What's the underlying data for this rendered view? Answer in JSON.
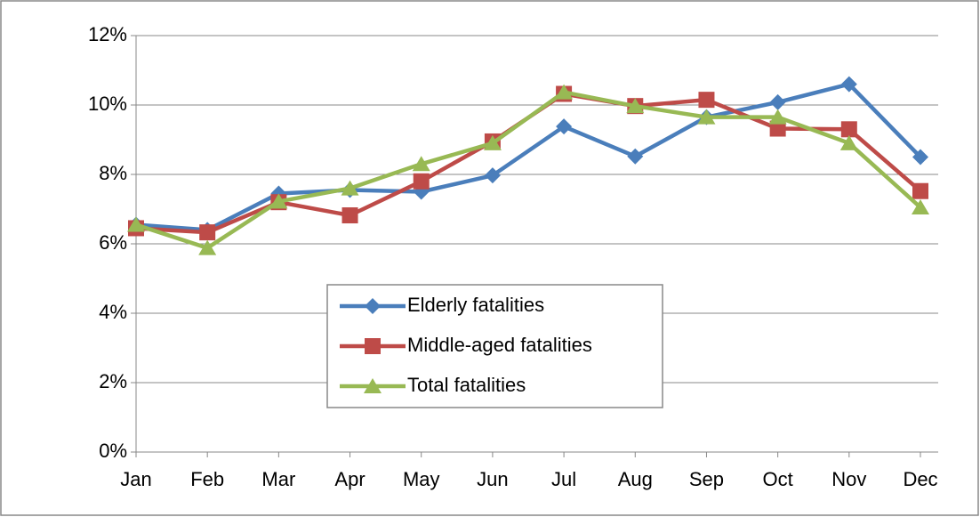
{
  "chart_data": {
    "type": "line",
    "categories": [
      "Jan",
      "Feb",
      "Mar",
      "Apr",
      "May",
      "Jun",
      "Jul",
      "Aug",
      "Sep",
      "Oct",
      "Nov",
      "Dec"
    ],
    "series": [
      {
        "name": "Elderly fatalities",
        "color": "#4a7ebb",
        "marker": "diamond",
        "values": [
          6.55,
          6.4,
          7.45,
          7.55,
          7.5,
          7.97,
          9.38,
          8.52,
          9.65,
          10.08,
          10.6,
          8.5
        ]
      },
      {
        "name": "Middle-aged fatalities",
        "color": "#be4b48",
        "marker": "square",
        "values": [
          6.45,
          6.33,
          7.2,
          6.82,
          7.8,
          8.95,
          10.32,
          9.97,
          10.15,
          9.32,
          9.3,
          7.52
        ]
      },
      {
        "name": "Total fatalities",
        "color": "#98b954",
        "marker": "triangle",
        "values": [
          6.55,
          5.88,
          7.22,
          7.6,
          8.3,
          8.9,
          10.37,
          9.97,
          9.65,
          9.65,
          8.9,
          7.05
        ]
      }
    ],
    "ylim": [
      0,
      12
    ],
    "yticks": [
      {
        "value": 0,
        "label": "0%"
      },
      {
        "value": 2,
        "label": "2%"
      },
      {
        "value": 4,
        "label": "4%"
      },
      {
        "value": 6,
        "label": "6%"
      },
      {
        "value": 8,
        "label": "8%"
      },
      {
        "value": 10,
        "label": "10%"
      },
      {
        "value": 12,
        "label": "12%"
      }
    ],
    "grid": true,
    "legend": "center"
  }
}
